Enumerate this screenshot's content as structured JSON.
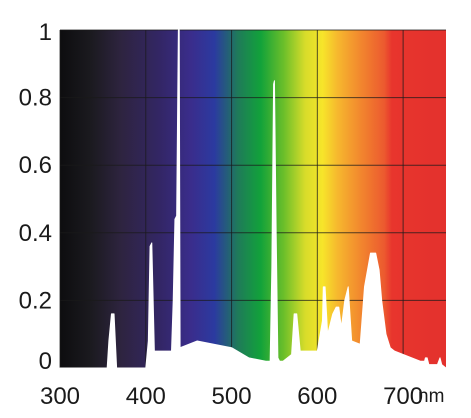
{
  "chart_data": {
    "type": "area",
    "title": "",
    "xlabel": "",
    "ylabel": "",
    "x_unit": "nm",
    "xlim": [
      300,
      750
    ],
    "ylim": [
      0,
      1
    ],
    "x_ticks": [
      300,
      400,
      500,
      600,
      700
    ],
    "x_tick_labels": [
      "300",
      "400",
      "500",
      "600",
      "700"
    ],
    "y_ticks": [
      0,
      0.2,
      0.4,
      0.6,
      0.8,
      1
    ],
    "y_tick_labels": [
      "0",
      "0.2",
      "0.4",
      "0.6",
      "0.8",
      "1"
    ],
    "grid": true,
    "grid_color": "#1a1a1a",
    "fill_color": "#ffffff",
    "background": "visible-spectrum gradient (black at 300 nm through violet, blue, green, yellow, orange to red)",
    "series": [
      {
        "x": [
          300,
          355,
          357,
          360,
          363,
          366,
          400,
          403,
          405,
          407,
          410,
          430,
          432,
          434,
          436,
          438,
          439,
          440,
          460,
          480,
          500,
          520,
          540,
          545,
          547,
          549,
          550,
          552,
          554,
          556,
          560,
          570,
          573,
          576,
          580,
          600,
          606,
          607,
          609,
          612,
          618,
          622,
          625,
          628,
          632,
          636,
          640,
          650,
          655,
          662,
          665,
          668,
          672,
          675,
          680,
          685,
          690,
          700,
          710,
          720,
          725,
          726,
          728,
          730,
          740,
          743,
          745,
          750
        ],
        "y": [
          0,
          0,
          0.08,
          0.16,
          0.16,
          0,
          0,
          0.08,
          0.36,
          0.37,
          0.05,
          0.05,
          0.2,
          0.44,
          0.45,
          1.0,
          1.0,
          0.06,
          0.08,
          0.07,
          0.06,
          0.03,
          0.02,
          0.02,
          0.3,
          0.84,
          0.85,
          0.4,
          0.03,
          0.02,
          0.02,
          0.04,
          0.16,
          0.16,
          0.05,
          0.05,
          0.14,
          0.24,
          0.24,
          0.1,
          0.16,
          0.18,
          0.18,
          0.12,
          0.2,
          0.24,
          0.08,
          0.07,
          0.24,
          0.34,
          0.34,
          0.34,
          0.29,
          0.2,
          0.1,
          0.06,
          0.05,
          0.04,
          0.03,
          0.02,
          0.02,
          0.03,
          0.03,
          0.01,
          0.01,
          0.03,
          0.01,
          0.0
        ]
      }
    ]
  }
}
